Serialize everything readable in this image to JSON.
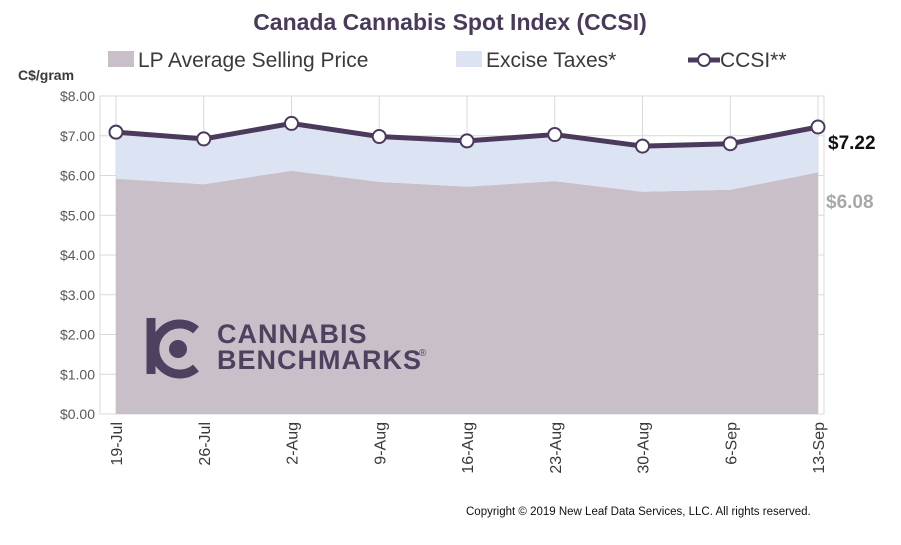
{
  "chart_data": {
    "type": "area",
    "title": "Canada Cannabis Spot Index (CCSI)",
    "ylabel": "C$/gram",
    "categories": [
      "19-Jul",
      "26-Jul",
      "2-Aug",
      "9-Aug",
      "16-Aug",
      "23-Aug",
      "30-Aug",
      "6-Sep",
      "13-Sep"
    ],
    "ylim": [
      0,
      8
    ],
    "yticks": [
      "$0.00",
      "$1.00",
      "$2.00",
      "$3.00",
      "$4.00",
      "$5.00",
      "$6.00",
      "$7.00",
      "$8.00"
    ],
    "grid": true,
    "legend_position": "top",
    "series": [
      {
        "name": "LP Average Selling Price",
        "type": "area",
        "color": "#c9bfc9",
        "values": [
          5.92,
          5.78,
          6.12,
          5.84,
          5.72,
          5.86,
          5.59,
          5.64,
          6.08
        ]
      },
      {
        "name": "Excise Taxes*",
        "type": "area",
        "color": "#dce3f3",
        "values": [
          1.17,
          1.14,
          1.19,
          1.14,
          1.15,
          1.17,
          1.15,
          1.16,
          1.14
        ]
      },
      {
        "name": "CCSI**",
        "type": "line",
        "color": "#4b3a5c",
        "values": [
          7.09,
          6.92,
          7.31,
          6.98,
          6.87,
          7.03,
          6.74,
          6.8,
          7.22
        ]
      }
    ],
    "annotations": {
      "last_ccsi": "$7.22",
      "last_price": "$6.08"
    }
  },
  "logo": {
    "line1": "CANNABIS",
    "line2": "BENCHMARKS",
    "mark": "®"
  },
  "copyright": "Copyright © 2019 New Leaf Data Services, LLC. All rights reserved.",
  "colors": {
    "title": "#4a3a5a",
    "grid": "#d9d9d9",
    "line": "#4b3a5c"
  }
}
